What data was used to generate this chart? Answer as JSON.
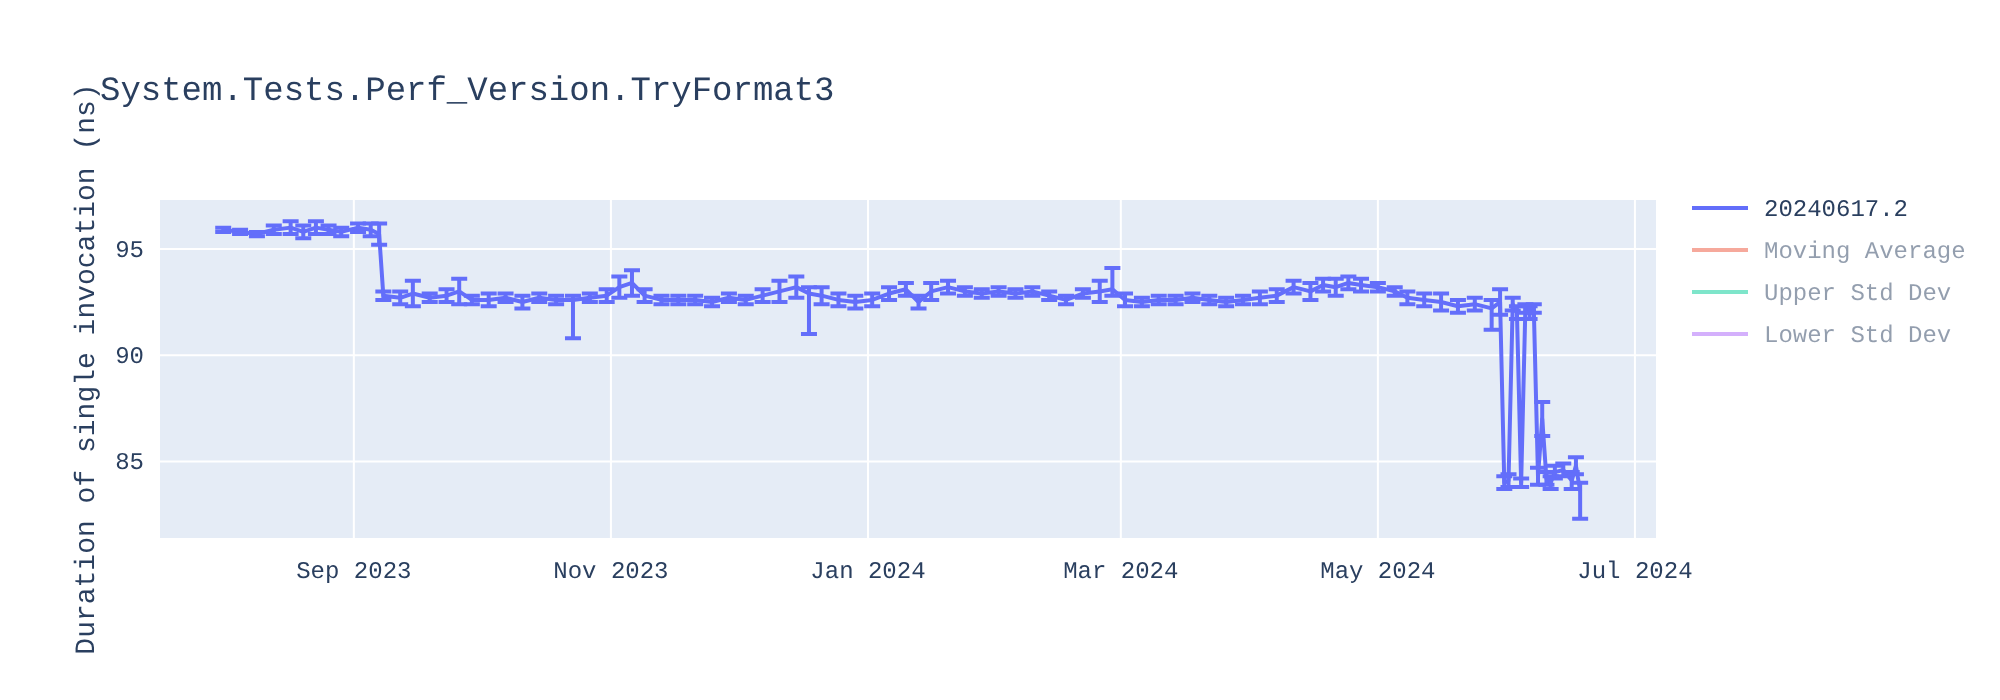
{
  "chart_data": {
    "type": "line",
    "title": "System.Tests.Perf_Version.TryFormat3",
    "ylabel": "Duration of single invocation (ns)",
    "xlim": [
      "2023-07-17",
      "2024-07-06"
    ],
    "xticks": [
      {
        "value": "2023-09-01",
        "label": "Sep 2023"
      },
      {
        "value": "2023-11-01",
        "label": "Nov 2023"
      },
      {
        "value": "2024-01-01",
        "label": "Jan 2024"
      },
      {
        "value": "2024-03-01",
        "label": "Mar 2024"
      },
      {
        "value": "2024-05-01",
        "label": "May 2024"
      },
      {
        "value": "2024-07-01",
        "label": "Jul 2024"
      }
    ],
    "ylim": [
      81.4,
      97.3
    ],
    "yticks": [
      85,
      90,
      95
    ],
    "grid": true,
    "legend": "top right",
    "series": [
      {
        "name": "20240617.2",
        "color": "#636efa",
        "x": [
          "2023-08-01",
          "2023-08-05",
          "2023-08-09",
          "2023-08-13",
          "2023-08-17",
          "2023-08-20",
          "2023-08-23",
          "2023-08-26",
          "2023-08-29",
          "2023-09-02",
          "2023-09-05",
          "2023-09-07",
          "2023-09-08",
          "2023-09-12",
          "2023-09-15",
          "2023-09-19",
          "2023-09-23",
          "2023-09-26",
          "2023-09-29",
          "2023-10-03",
          "2023-10-07",
          "2023-10-11",
          "2023-10-15",
          "2023-10-19",
          "2023-10-23",
          "2023-10-27",
          "2023-10-31",
          "2023-11-03",
          "2023-11-06",
          "2023-11-09",
          "2023-11-13",
          "2023-11-17",
          "2023-11-21",
          "2023-11-25",
          "2023-11-29",
          "2023-12-03",
          "2023-12-07",
          "2023-12-11",
          "2023-12-15",
          "2023-12-18",
          "2023-12-21",
          "2023-12-25",
          "2023-12-29",
          "2024-01-02",
          "2024-01-06",
          "2024-01-10",
          "2024-01-13",
          "2024-01-16",
          "2024-01-20",
          "2024-01-24",
          "2024-01-28",
          "2024-02-01",
          "2024-02-05",
          "2024-02-09",
          "2024-02-13",
          "2024-02-17",
          "2024-02-21",
          "2024-02-25",
          "2024-02-28",
          "2024-03-02",
          "2024-03-06",
          "2024-03-10",
          "2024-03-14",
          "2024-03-18",
          "2024-03-22",
          "2024-03-26",
          "2024-03-30",
          "2024-04-03",
          "2024-04-07",
          "2024-04-11",
          "2024-04-15",
          "2024-04-18",
          "2024-04-21",
          "2024-04-24",
          "2024-04-27",
          "2024-05-01",
          "2024-05-05",
          "2024-05-08",
          "2024-05-12",
          "2024-05-16",
          "2024-05-20",
          "2024-05-24",
          "2024-05-28",
          "2024-05-30",
          "2024-05-31",
          "2024-06-01",
          "2024-06-02",
          "2024-06-03",
          "2024-06-04",
          "2024-06-05",
          "2024-06-06",
          "2024-06-07",
          "2024-06-08",
          "2024-06-09",
          "2024-06-10",
          "2024-06-11",
          "2024-06-12",
          "2024-06-14",
          "2024-06-16",
          "2024-06-17",
          "2024-06-18"
        ],
        "values": [
          95.9,
          95.8,
          95.7,
          95.9,
          96.0,
          95.8,
          96.0,
          95.9,
          95.8,
          96.0,
          95.9,
          95.7,
          92.8,
          92.7,
          92.9,
          92.7,
          92.8,
          93.0,
          92.6,
          92.6,
          92.7,
          92.5,
          92.7,
          92.6,
          92.6,
          92.7,
          92.8,
          93.2,
          93.4,
          92.8,
          92.6,
          92.6,
          92.6,
          92.5,
          92.7,
          92.6,
          92.8,
          93.0,
          93.2,
          92.9,
          92.8,
          92.6,
          92.5,
          92.6,
          92.9,
          93.1,
          92.5,
          93.0,
          93.2,
          93.0,
          92.9,
          93.0,
          92.9,
          93.0,
          92.8,
          92.6,
          92.9,
          93.0,
          93.1,
          92.6,
          92.5,
          92.6,
          92.6,
          92.7,
          92.6,
          92.5,
          92.6,
          92.7,
          92.8,
          93.2,
          93.0,
          93.3,
          93.2,
          93.4,
          93.3,
          93.2,
          93.0,
          92.7,
          92.6,
          92.5,
          92.3,
          92.4,
          92.2,
          92.5,
          84.0,
          84.1,
          92.4,
          92.0,
          84.0,
          92.2,
          92.0,
          92.2,
          84.3,
          87.0,
          84.2,
          84.0,
          84.5,
          84.6,
          84.1,
          84.8,
          83.6
        ],
        "errors": [
          0.1,
          0.1,
          0.1,
          0.2,
          0.3,
          0.3,
          0.3,
          0.2,
          0.2,
          0.2,
          0.3,
          0.5,
          0.2,
          0.3,
          0.6,
          0.2,
          0.3,
          0.6,
          0.2,
          0.3,
          0.2,
          0.3,
          0.2,
          0.2,
          [
            90.8,
            92.8
          ],
          0.2,
          0.3,
          0.5,
          0.6,
          0.3,
          0.2,
          0.2,
          0.2,
          0.2,
          0.2,
          0.2,
          0.3,
          0.5,
          0.5,
          [
            91.0,
            93.2
          ],
          0.4,
          0.3,
          0.3,
          0.3,
          0.3,
          0.3,
          0.3,
          0.4,
          0.3,
          0.2,
          0.2,
          0.2,
          0.2,
          0.2,
          0.2,
          0.2,
          0.2,
          0.5,
          [
            92.8,
            94.1
          ],
          0.3,
          0.2,
          0.2,
          0.2,
          0.2,
          0.2,
          0.2,
          0.2,
          0.3,
          0.3,
          0.3,
          0.4,
          0.3,
          0.4,
          0.3,
          0.3,
          0.2,
          0.2,
          0.3,
          0.3,
          0.4,
          0.3,
          0.3,
          [
            91.2,
            92.6
          ],
          0.6,
          0.3,
          0.3,
          0.3,
          0.3,
          0.2,
          0.2,
          0.3,
          0.2,
          0.4,
          0.8,
          0.3,
          0.3,
          0.3,
          0.3,
          0.4,
          0.4,
          [
            82.3,
            84.0
          ]
        ]
      },
      {
        "name": "Moving Average",
        "color": "#ef553b",
        "values": [
          null
        ]
      },
      {
        "name": "Upper Std Dev",
        "color": "#00cc96",
        "values": [
          null
        ]
      },
      {
        "name": "Lower Std Dev",
        "color": "#ab63fa",
        "values": [
          null
        ]
      }
    ]
  }
}
